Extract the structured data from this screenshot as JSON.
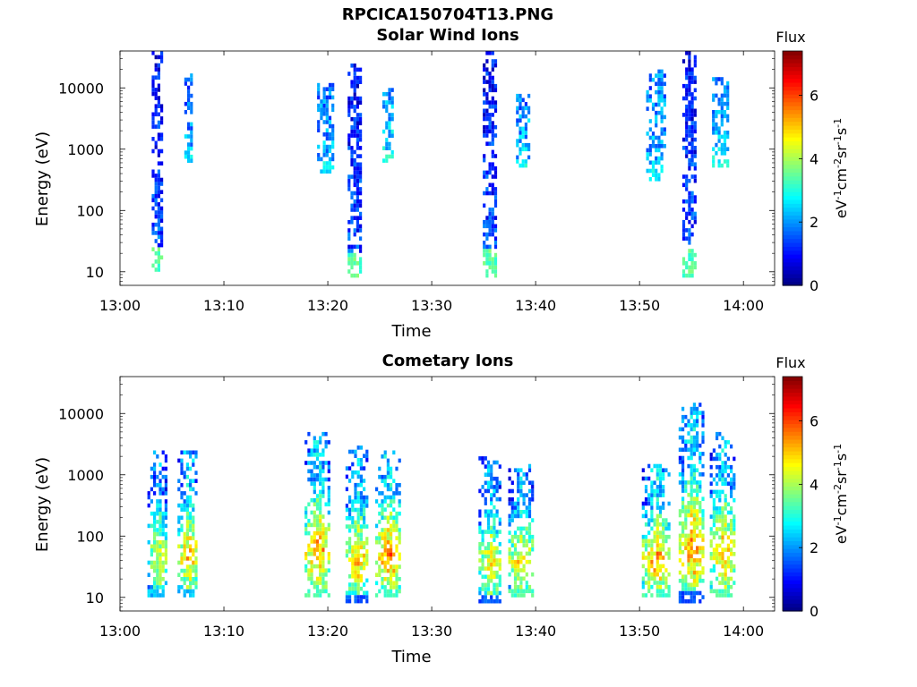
{
  "figure": {
    "title": "RPCICA150704T13.PNG",
    "colors": {
      "scale": [
        "#00007f",
        "#0000ff",
        "#007fff",
        "#00ffff",
        "#7fff7f",
        "#ffff00",
        "#ff7f00",
        "#ff0000",
        "#7f0000"
      ]
    }
  },
  "chart_data": [
    {
      "type": "heatmap",
      "title": "Solar Wind Ions",
      "xlabel": "Time",
      "ylabel": "Energy (eV)",
      "y_scale": "log",
      "ylim": [
        6,
        40000
      ],
      "xlim": [
        "13:00",
        "14:03"
      ],
      "x_ticks": [
        "13:00",
        "13:10",
        "13:20",
        "13:30",
        "13:40",
        "13:50",
        "14:00"
      ],
      "y_ticks": [
        "10",
        "100",
        "1000",
        "10000"
      ],
      "colorbar": {
        "label": "Flux",
        "units_parts": [
          "eV",
          "-1",
          "cm",
          "-2",
          "sr",
          "-1",
          "s",
          "-1"
        ],
        "range": [
          0,
          7.4
        ],
        "ticks": [
          "0",
          "2",
          "4",
          "6"
        ]
      },
      "bursts": [
        {
          "t": 3.6,
          "width": 1.2,
          "emin": 10,
          "emax": 40000,
          "flux": 1.5,
          "low_flux": 3.0
        },
        {
          "t": 6.6,
          "width": 0.8,
          "emin": 600,
          "emax": 20000,
          "flux": 2.2,
          "low_flux": 2.2
        },
        {
          "t": 22.6,
          "width": 1.4,
          "emin": 8,
          "emax": 25000,
          "flux": 1.5,
          "low_flux": 3.0
        },
        {
          "t": 19.8,
          "width": 1.6,
          "emin": 400,
          "emax": 12000,
          "flux": 2.3,
          "low_flux": 2.3
        },
        {
          "t": 25.8,
          "width": 1.0,
          "emin": 600,
          "emax": 10000,
          "flux": 2.6,
          "low_flux": 2.6
        },
        {
          "t": 35.6,
          "width": 1.4,
          "emin": 8,
          "emax": 40000,
          "flux": 1.5,
          "low_flux": 3.0
        },
        {
          "t": 38.8,
          "width": 1.4,
          "emin": 500,
          "emax": 8000,
          "flux": 2.4,
          "low_flux": 2.4
        },
        {
          "t": 54.8,
          "width": 1.4,
          "emin": 8,
          "emax": 40000,
          "flux": 1.5,
          "low_flux": 3.0
        },
        {
          "t": 51.6,
          "width": 1.8,
          "emin": 300,
          "emax": 20000,
          "flux": 2.3,
          "low_flux": 2.3
        },
        {
          "t": 57.8,
          "width": 1.6,
          "emin": 500,
          "emax": 15000,
          "flux": 2.4,
          "low_flux": 2.4
        }
      ]
    },
    {
      "type": "heatmap",
      "title": "Cometary Ions",
      "xlabel": "Time",
      "ylabel": "Energy (eV)",
      "y_scale": "log",
      "ylim": [
        6,
        40000
      ],
      "xlim": [
        "13:00",
        "14:03"
      ],
      "x_ticks": [
        "13:00",
        "13:10",
        "13:20",
        "13:30",
        "13:40",
        "13:50",
        "14:00"
      ],
      "y_ticks": [
        "10",
        "100",
        "1000",
        "10000"
      ],
      "colorbar": {
        "label": "Flux",
        "units_parts": [
          "eV",
          "-1",
          "cm",
          "-2",
          "sr",
          "-1",
          "s",
          "-1"
        ],
        "range": [
          0,
          7.4
        ],
        "ticks": [
          "0",
          "2",
          "4",
          "6"
        ]
      },
      "bursts": [
        {
          "t": 3.6,
          "width": 1.8,
          "emin": 10,
          "emax": 2500,
          "flux": 4.0,
          "low_flux": 2.0
        },
        {
          "t": 6.5,
          "width": 2.0,
          "emin": 10,
          "emax": 2500,
          "flux": 4.6,
          "low_flux": 2.0
        },
        {
          "t": 19.0,
          "width": 2.4,
          "emin": 10,
          "emax": 5000,
          "flux": 4.8,
          "low_flux": 3.0
        },
        {
          "t": 22.8,
          "width": 2.2,
          "emin": 8,
          "emax": 3000,
          "flux": 4.5,
          "low_flux": 1.2
        },
        {
          "t": 25.8,
          "width": 2.4,
          "emin": 10,
          "emax": 2500,
          "flux": 5.0,
          "low_flux": 3.0
        },
        {
          "t": 35.6,
          "width": 2.2,
          "emin": 8,
          "emax": 2000,
          "flux": 4.2,
          "low_flux": 1.2
        },
        {
          "t": 38.6,
          "width": 2.6,
          "emin": 10,
          "emax": 1500,
          "flux": 4.4,
          "low_flux": 3.0
        },
        {
          "t": 51.6,
          "width": 2.8,
          "emin": 10,
          "emax": 1500,
          "flux": 4.8,
          "low_flux": 3.0
        },
        {
          "t": 55.0,
          "width": 2.6,
          "emin": 8,
          "emax": 15000,
          "flux": 4.9,
          "low_flux": 1.2
        },
        {
          "t": 58.0,
          "width": 2.6,
          "emin": 10,
          "emax": 5000,
          "flux": 4.6,
          "low_flux": 3.0
        }
      ]
    }
  ]
}
